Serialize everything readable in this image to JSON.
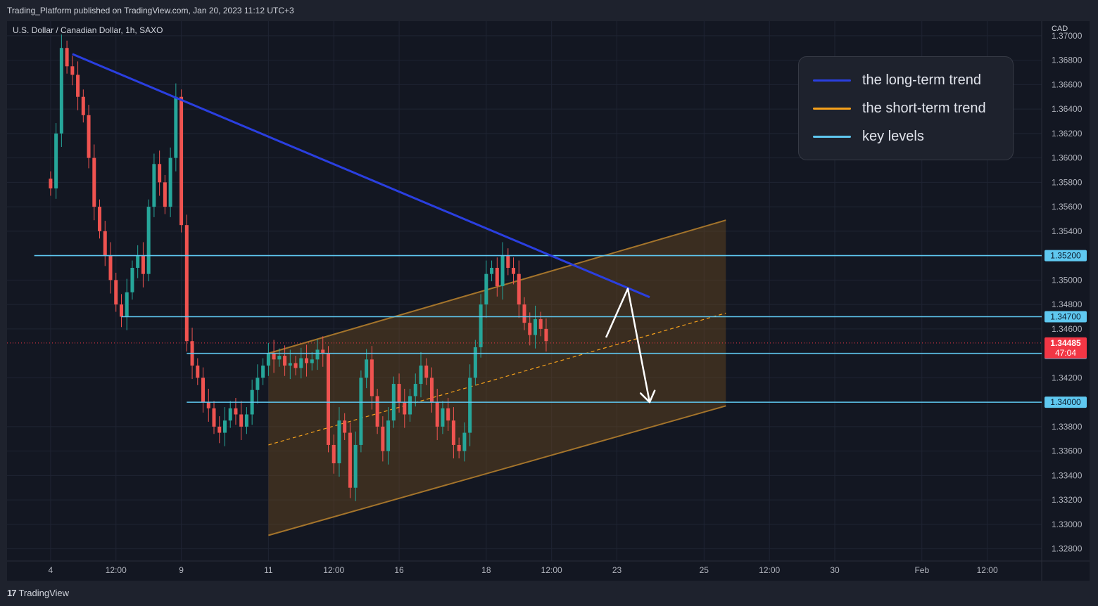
{
  "header": {
    "published_text": "Trading_Platform published on TradingView.com, Jan 20, 2023 11:12 UTC+3"
  },
  "footer": {
    "logo_mark": "17",
    "logo_text": "TradingView"
  },
  "colors": {
    "background": "#131722",
    "long_trend": "#2a3fe0",
    "short_trend": "#f7a21b",
    "key_levels": "#5fc8f0",
    "channel_fill": "#6b4a1e",
    "channel_edge": "#a4742b",
    "up_candle": "#26a69a",
    "down_candle": "#ef5350",
    "current_price_tag": "#f23645"
  },
  "chart_data": {
    "type": "candlestick",
    "symbol_title": "U.S. Dollar / Canadian Dollar, 1h, SAXO",
    "currency": "CAD",
    "ylim": [
      1.327,
      1.3712
    ],
    "y_ticks": [
      "1.37000",
      "1.36800",
      "1.36600",
      "1.36400",
      "1.36200",
      "1.36000",
      "1.35800",
      "1.35600",
      "1.35400",
      "1.35000",
      "1.34800",
      "1.34600",
      "1.34200",
      "1.33800",
      "1.33600",
      "1.33400",
      "1.33200",
      "1.33000",
      "1.32800"
    ],
    "x_ticks": [
      {
        "label": "4",
        "i": 0
      },
      {
        "label": "12:00",
        "i": 12
      },
      {
        "label": "9",
        "i": 24
      },
      {
        "label": "11",
        "i": 40
      },
      {
        "label": "12:00",
        "i": 52
      },
      {
        "label": "16",
        "i": 64
      },
      {
        "label": "18",
        "i": 80
      },
      {
        "label": "12:00",
        "i": 92
      },
      {
        "label": "23",
        "i": 104
      },
      {
        "label": "25",
        "i": 120
      },
      {
        "label": "12:00",
        "i": 132
      },
      {
        "label": "30",
        "i": 144
      },
      {
        "label": "Feb",
        "i": 160
      },
      {
        "label": "12:00",
        "i": 172
      }
    ],
    "x_range": [
      -8,
      182
    ],
    "closes": [
      1.3575,
      1.362,
      1.369,
      1.3675,
      1.3668,
      1.365,
      1.3635,
      1.36,
      1.356,
      1.354,
      1.352,
      1.35,
      1.348,
      1.347,
      1.349,
      1.351,
      1.352,
      1.3505,
      1.356,
      1.3595,
      1.358,
      1.356,
      1.36,
      1.365,
      1.3545,
      1.345,
      1.343,
      1.342,
      1.34,
      1.3395,
      1.338,
      1.3375,
      1.3385,
      1.3395,
      1.339,
      1.338,
      1.339,
      1.341,
      1.342,
      1.343,
      1.344,
      1.3435,
      1.3438,
      1.343,
      1.3432,
      1.3428,
      1.3436,
      1.3432,
      1.3435,
      1.3443,
      1.344,
      1.3365,
      1.335,
      1.3385,
      1.3375,
      1.333,
      1.3365,
      1.342,
      1.3435,
      1.3405,
      1.338,
      1.336,
      1.3385,
      1.3415,
      1.34,
      1.339,
      1.3405,
      1.3415,
      1.343,
      1.342,
      1.34,
      1.338,
      1.3395,
      1.3385,
      1.3365,
      1.336,
      1.3375,
      1.342,
      1.3445,
      1.348,
      1.3505,
      1.351,
      1.3495,
      1.352,
      1.351,
      1.3505,
      1.348,
      1.3465,
      1.3455,
      1.3468,
      1.346,
      1.345
    ],
    "channel": {
      "upper": [
        {
          "i": 40,
          "price": 1.344
        },
        {
          "i": 124,
          "price": 1.3549
        }
      ],
      "lower": [
        {
          "i": 40,
          "price": 1.3291
        },
        {
          "i": 124,
          "price": 1.3397
        }
      ],
      "midline": [
        {
          "i": 40,
          "price": 1.3365
        },
        {
          "i": 124,
          "price": 1.3473
        }
      ]
    },
    "long_term_trend": [
      {
        "i": 4,
        "price": 1.3685
      },
      {
        "i": 110,
        "price": 1.3486
      }
    ],
    "key_levels": [
      {
        "price": 1.352,
        "label": "1.35200",
        "from_i": -3
      },
      {
        "price": 1.347,
        "label": "1.34700",
        "from_i": 13
      },
      {
        "price": 1.344,
        "label": "1.34400",
        "from_i": 25
      },
      {
        "price": 1.34,
        "label": "1.34000",
        "from_i": 25
      }
    ],
    "current_price": {
      "price": 1.34485,
      "label": "1.34485",
      "countdown": "47:04"
    },
    "projection_arrow": [
      {
        "i": 102,
        "price": 1.3453
      },
      {
        "i": 106,
        "price": 1.3493
      },
      {
        "i": 110,
        "price": 1.34
      }
    ],
    "legend": [
      {
        "name": "the long-term trend",
        "color": "#2a3fe0"
      },
      {
        "name": "the short-term trend",
        "color": "#f7a21b"
      },
      {
        "name": "key levels",
        "color": "#5fc8f0"
      }
    ]
  }
}
